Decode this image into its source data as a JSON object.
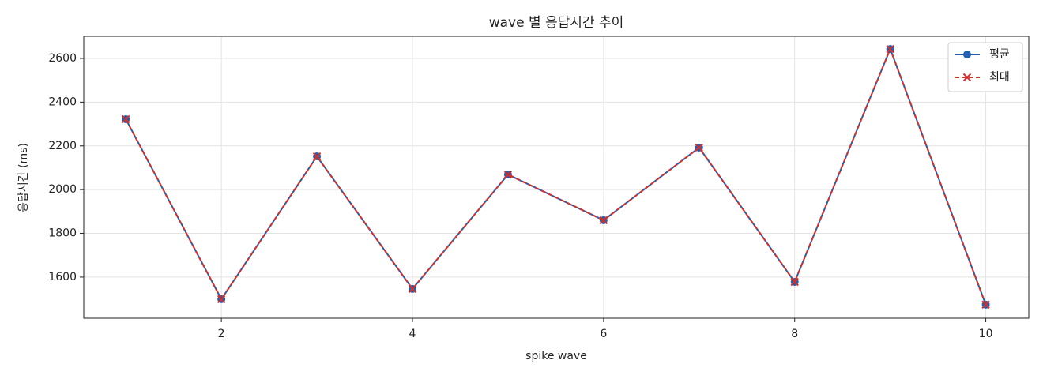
{
  "chart_data": {
    "type": "line",
    "title": "wave 별 응답시간 추이",
    "xlabel": "spike wave",
    "ylabel": "응답시간 (ms)",
    "x": [
      1,
      2,
      3,
      4,
      5,
      6,
      7,
      8,
      9,
      10
    ],
    "series": [
      {
        "name": "평균",
        "color": "#1f5fb4",
        "marker": "o",
        "linestyle": "solid",
        "values": [
          2322,
          1499,
          2152,
          1546,
          2069,
          1860,
          2192,
          1578,
          2643,
          1474
        ]
      },
      {
        "name": "최대",
        "color": "#d0312d",
        "marker": "x",
        "linestyle": "dashed",
        "values": [
          2322,
          1499,
          2152,
          1546,
          2069,
          1860,
          2192,
          1578,
          2643,
          1474
        ]
      }
    ],
    "xlim": [
      0.56,
      10.45
    ],
    "ylim": [
      1412,
      2701
    ],
    "xticks": [
      2,
      4,
      6,
      8,
      10
    ],
    "yticks": [
      1600,
      1800,
      2000,
      2200,
      2400,
      2600
    ],
    "grid": true,
    "legend": "upper right"
  }
}
